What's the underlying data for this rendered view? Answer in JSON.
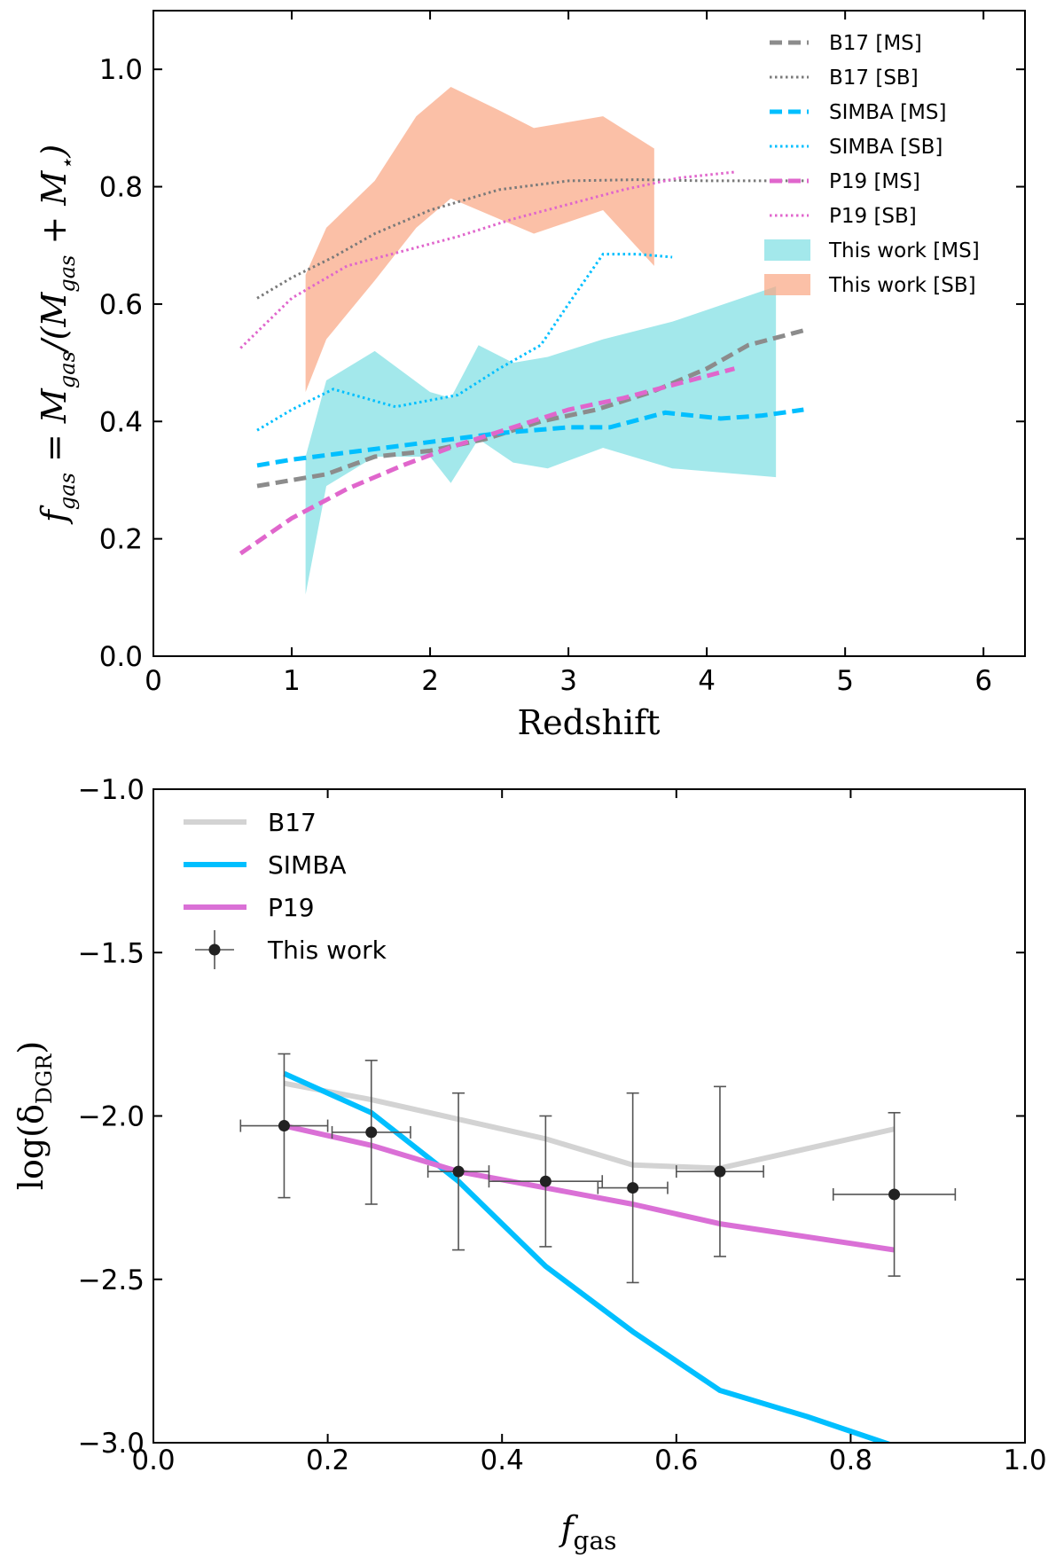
{
  "chart_data": [
    {
      "type": "line",
      "panel": "top",
      "xlabel": "Redshift",
      "ylabel_parts": {
        "f": "f",
        "gas": "gas",
        "eq": " = M",
        "slash": "/(M",
        "plus": " + M",
        "star": "⋆",
        "close": ")"
      },
      "xlim": [
        0,
        6.3
      ],
      "ylim": [
        0,
        1.1
      ],
      "xticks": [
        0,
        1,
        2,
        3,
        4,
        5,
        6
      ],
      "xtick_labels": [
        "0",
        "1",
        "2",
        "3",
        "4",
        "5",
        "6"
      ],
      "yticks": [
        0.0,
        0.2,
        0.4,
        0.6,
        0.8,
        1.0
      ],
      "ytick_labels": [
        "0.0",
        "0.2",
        "0.4",
        "0.6",
        "0.8",
        "1.0"
      ],
      "legend_position": "top-right",
      "series": [
        {
          "name": "B17 [MS]",
          "style": "dashed",
          "color": "#8c8c8c",
          "x": [
            0.75,
            1.0,
            1.25,
            1.6,
            2.0,
            2.4,
            2.8,
            3.2,
            3.6,
            4.0,
            4.3,
            4.7
          ],
          "y": [
            0.29,
            0.3,
            0.31,
            0.34,
            0.35,
            0.37,
            0.4,
            0.42,
            0.45,
            0.49,
            0.53,
            0.555
          ]
        },
        {
          "name": "B17 [SB]",
          "style": "dotted",
          "color": "#7a7a7a",
          "x": [
            0.75,
            1.0,
            1.3,
            1.6,
            2.0,
            2.5,
            3.0,
            3.5,
            4.0,
            4.7
          ],
          "y": [
            0.61,
            0.645,
            0.68,
            0.72,
            0.76,
            0.795,
            0.81,
            0.812,
            0.81,
            0.81
          ]
        },
        {
          "name": "SIMBA [MS]",
          "style": "dashed",
          "color": "#00bfff",
          "x": [
            0.75,
            1.0,
            1.5,
            2.0,
            2.5,
            3.0,
            3.3,
            3.7,
            4.1,
            4.4,
            4.7
          ],
          "y": [
            0.325,
            0.335,
            0.35,
            0.365,
            0.38,
            0.39,
            0.39,
            0.415,
            0.405,
            0.41,
            0.42
          ]
        },
        {
          "name": "SIMBA [SB]",
          "style": "dotted",
          "color": "#00bfff",
          "x": [
            0.75,
            1.0,
            1.3,
            1.75,
            2.2,
            2.5,
            2.8,
            3.0,
            3.25,
            3.5,
            3.75
          ],
          "y": [
            0.385,
            0.42,
            0.455,
            0.425,
            0.445,
            0.49,
            0.53,
            0.6,
            0.685,
            0.685,
            0.68
          ]
        },
        {
          "name": "P19 [MS]",
          "style": "dashed",
          "color": "#e066cc",
          "x": [
            0.63,
            1.0,
            1.4,
            1.8,
            2.2,
            2.6,
            3.0,
            3.4,
            3.8,
            4.2
          ],
          "y": [
            0.175,
            0.235,
            0.285,
            0.325,
            0.36,
            0.39,
            0.42,
            0.44,
            0.465,
            0.49
          ]
        },
        {
          "name": "P19 [SB]",
          "style": "dotted",
          "color": "#e066cc",
          "x": [
            0.63,
            1.0,
            1.4,
            1.8,
            2.2,
            2.6,
            3.0,
            3.4,
            3.8,
            4.2
          ],
          "y": [
            0.525,
            0.61,
            0.665,
            0.69,
            0.715,
            0.745,
            0.77,
            0.795,
            0.815,
            0.825
          ]
        }
      ],
      "bands": [
        {
          "name": "This work [MS]",
          "color": "#66d9de",
          "opacity": 0.6,
          "x": [
            1.1,
            1.25,
            1.6,
            2.0,
            2.15,
            2.35,
            2.6,
            2.85,
            3.25,
            3.75,
            4.5
          ],
          "upper": [
            0.34,
            0.47,
            0.52,
            0.45,
            0.44,
            0.53,
            0.5,
            0.51,
            0.54,
            0.57,
            0.63
          ],
          "lower": [
            0.105,
            0.29,
            0.34,
            0.34,
            0.295,
            0.37,
            0.33,
            0.32,
            0.355,
            0.32,
            0.305
          ]
        },
        {
          "name": "This work [SB]",
          "color": "#f9a582",
          "opacity": 0.7,
          "x": [
            1.1,
            1.25,
            1.6,
            1.9,
            2.15,
            2.5,
            2.75,
            3.25,
            3.62
          ],
          "upper": [
            0.65,
            0.73,
            0.81,
            0.92,
            0.97,
            0.93,
            0.9,
            0.92,
            0.865
          ],
          "lower": [
            0.45,
            0.54,
            0.64,
            0.73,
            0.78,
            0.745,
            0.72,
            0.76,
            0.665
          ]
        }
      ]
    },
    {
      "type": "line",
      "panel": "bottom",
      "xlabel_parts": {
        "f": "f",
        "gas": "gas"
      },
      "ylabel_parts": {
        "log": "log(δ",
        "sub": "DGR",
        "close": ")"
      },
      "xlim": [
        0.0,
        1.0
      ],
      "ylim": [
        -3.0,
        -1.0
      ],
      "xticks": [
        0.0,
        0.2,
        0.4,
        0.6,
        0.8,
        1.0
      ],
      "xtick_labels": [
        "0.0",
        "0.2",
        "0.4",
        "0.6",
        "0.8",
        "1.0"
      ],
      "yticks": [
        -3.0,
        -2.5,
        -2.0,
        -1.5,
        -1.0
      ],
      "ytick_labels": [
        "−3.0",
        "−2.5",
        "−2.0",
        "−1.5",
        "−1.0"
      ],
      "legend_position": "top-left",
      "series": [
        {
          "name": "B17",
          "color": "#d3d3d3",
          "x": [
            0.15,
            0.25,
            0.35,
            0.45,
            0.55,
            0.65,
            0.85
          ],
          "y": [
            -1.9,
            -1.95,
            -2.01,
            -2.07,
            -2.15,
            -2.16,
            -2.04
          ]
        },
        {
          "name": "SIMBA",
          "color": "#00bfff",
          "x": [
            0.15,
            0.25,
            0.35,
            0.45,
            0.55,
            0.65,
            0.75,
            0.85
          ],
          "y": [
            -1.87,
            -1.99,
            -2.2,
            -2.46,
            -2.66,
            -2.84,
            -2.92,
            -3.01
          ]
        },
        {
          "name": "P19",
          "color": "#da70d6",
          "x": [
            0.15,
            0.25,
            0.35,
            0.45,
            0.55,
            0.65,
            0.75,
            0.85
          ],
          "y": [
            -2.03,
            -2.09,
            -2.17,
            -2.22,
            -2.27,
            -2.33,
            -2.37,
            -2.41
          ]
        }
      ],
      "errorbar_series": {
        "name": "This work",
        "color": "#222222",
        "x": [
          0.15,
          0.25,
          0.35,
          0.45,
          0.55,
          0.65,
          0.85
        ],
        "y": [
          -2.03,
          -2.05,
          -2.17,
          -2.2,
          -2.22,
          -2.17,
          -2.24
        ],
        "xerr": [
          0.05,
          0.045,
          0.035,
          0.065,
          0.04,
          0.05,
          0.07
        ],
        "yerr": [
          0.22,
          0.22,
          0.24,
          0.2,
          0.29,
          0.26,
          0.25
        ]
      }
    }
  ]
}
